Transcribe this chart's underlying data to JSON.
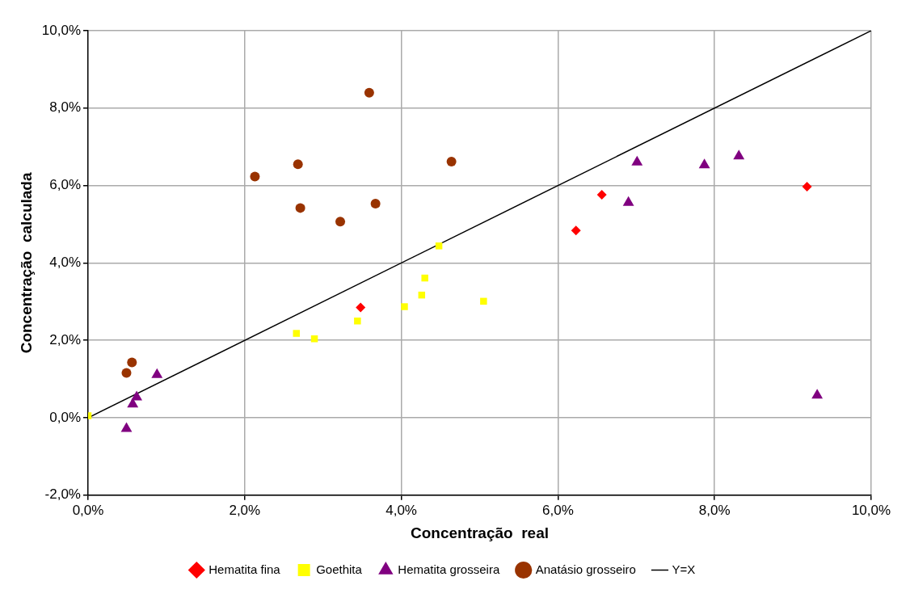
{
  "chart_data": {
    "type": "scatter",
    "xlabel": "Concentração  real",
    "ylabel": "Concentração  calculada",
    "xlim": [
      0,
      10
    ],
    "ylim": [
      -2,
      10
    ],
    "xticks": [
      {
        "value": 0,
        "label": "0,0%"
      },
      {
        "value": 2,
        "label": "2,0%"
      },
      {
        "value": 4,
        "label": "4,0%"
      },
      {
        "value": 6,
        "label": "6,0%"
      },
      {
        "value": 8,
        "label": "8,0%"
      },
      {
        "value": 10,
        "label": "10,0%"
      }
    ],
    "yticks": [
      {
        "value": -2,
        "label": "-2,0%"
      },
      {
        "value": 0,
        "label": "0,0%"
      },
      {
        "value": 2,
        "label": "2,0%"
      },
      {
        "value": 4,
        "label": "4,0%"
      },
      {
        "value": 6,
        "label": "6,0%"
      },
      {
        "value": 8,
        "label": "8,0%"
      },
      {
        "value": 10,
        "label": "10,0%"
      }
    ],
    "grid": true,
    "legend": "bottom",
    "series": [
      {
        "name": "Hematita fina",
        "color": "#ff0000",
        "marker": "diamond",
        "x": [
          3.48,
          6.56,
          6.23,
          9.18
        ],
        "values": [
          2.85,
          5.76,
          4.84,
          5.97
        ]
      },
      {
        "name": "Goethita",
        "color": "#ffff00",
        "marker": "square",
        "x": [
          0,
          2.66,
          2.89,
          3.44,
          4.04,
          4.26,
          4.3,
          4.48,
          5.05
        ],
        "values": [
          0.05,
          2.18,
          2.04,
          2.5,
          2.87,
          3.17,
          3.61,
          4.44,
          3.01
        ]
      },
      {
        "name": "Hematita grosseira",
        "color": "#800080",
        "marker": "triangle",
        "x": [
          0.49,
          0.57,
          0.62,
          0.88,
          6.9,
          7.01,
          7.87,
          8.31,
          9.31
        ],
        "values": [
          -0.28,
          0.35,
          0.53,
          1.11,
          5.56,
          6.6,
          6.53,
          6.76,
          0.58
        ]
      },
      {
        "name": "Anatásio grosseiro",
        "color": "#993300",
        "marker": "circle",
        "x": [
          0.49,
          0.56,
          2.13,
          2.68,
          2.71,
          3.22,
          3.59,
          3.67,
          4.64
        ],
        "values": [
          1.16,
          1.43,
          6.23,
          6.55,
          5.42,
          5.07,
          8.4,
          5.53,
          6.62
        ]
      },
      {
        "name": "Y=X",
        "type": "line",
        "color": "#000000",
        "marker": "none",
        "line_style": "solid",
        "x": [
          0,
          10
        ],
        "values": [
          0,
          10
        ]
      }
    ]
  }
}
